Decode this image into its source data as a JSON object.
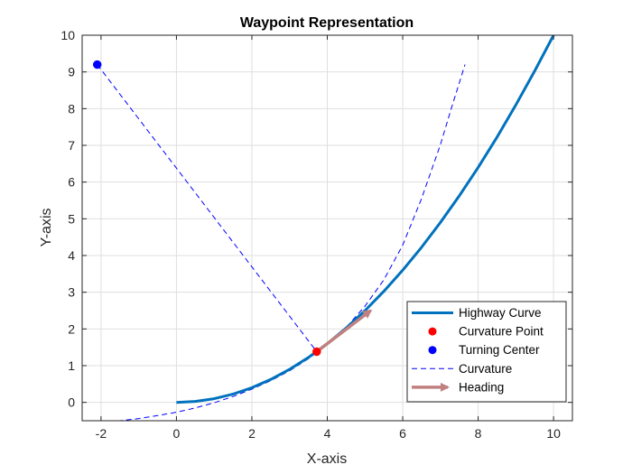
{
  "chart_data": {
    "type": "line",
    "title": "Waypoint Representation",
    "xlabel": "X-axis",
    "ylabel": "Y-axis",
    "xlim": [
      -2.5,
      10.5
    ],
    "ylim": [
      -0.5,
      10
    ],
    "xticks": [
      -2,
      0,
      2,
      4,
      6,
      8,
      10
    ],
    "xtick_labels": [
      "-2",
      "0",
      "2",
      "4",
      "6",
      "8",
      "10"
    ],
    "yticks": [
      0,
      1,
      2,
      3,
      4,
      5,
      6,
      7,
      8,
      9,
      10
    ],
    "ytick_labels": [
      "0",
      "1",
      "2",
      "3",
      "4",
      "5",
      "6",
      "7",
      "8",
      "9",
      "10"
    ],
    "grid": true,
    "legend_position": "bottom-right",
    "series": [
      {
        "name": "Highway Curve",
        "kind": "line",
        "color": "#0072BD",
        "x": [
          0,
          0.5,
          1,
          1.5,
          2,
          2.5,
          3,
          3.5,
          4,
          4.5,
          5,
          5.5,
          6,
          6.5,
          7,
          7.5,
          8,
          8.5,
          9,
          9.5,
          10
        ],
        "y": [
          0,
          0.025,
          0.1,
          0.225,
          0.4,
          0.625,
          0.9,
          1.225,
          1.6,
          2.025,
          2.5,
          3.025,
          3.6,
          4.225,
          4.9,
          5.625,
          6.4,
          7.225,
          8.1,
          9.025,
          10
        ]
      },
      {
        "name": "Curvature Point",
        "kind": "marker",
        "color": "#FF0000",
        "x": [
          3.72
        ],
        "y": [
          1.38
        ]
      },
      {
        "name": "Turning Center",
        "kind": "marker",
        "color": "#0000FF",
        "x": [
          -2.1
        ],
        "y": [
          9.2
        ]
      },
      {
        "name": "Curvature",
        "kind": "dashed-line",
        "color": "#0000FF",
        "x": [
          -2.05,
          -1.5,
          -1.0,
          -0.5,
          0.0,
          0.5,
          1.0,
          1.5,
          2.0,
          2.5,
          3.0,
          3.5,
          4.0,
          4.5,
          5.0,
          5.5,
          6.0,
          6.5,
          7.0,
          7.3,
          7.5,
          7.65
        ],
        "y": [
          -0.55,
          -0.5,
          -0.44,
          -0.36,
          -0.27,
          -0.15,
          -0.01,
          0.16,
          0.36,
          0.59,
          0.86,
          1.19,
          1.57,
          2.04,
          2.62,
          3.34,
          4.28,
          5.55,
          7.02,
          8.04,
          8.7,
          9.2
        ]
      },
      {
        "name": "Heading",
        "kind": "arrow",
        "color": "#C08080",
        "x": [
          3.72,
          5.15
        ],
        "y": [
          1.38,
          2.5
        ]
      },
      {
        "name": "",
        "kind": "dashed-connector",
        "color": "#0000FF",
        "x": [
          -2.1,
          3.72
        ],
        "y": [
          9.2,
          1.38
        ]
      }
    ]
  }
}
